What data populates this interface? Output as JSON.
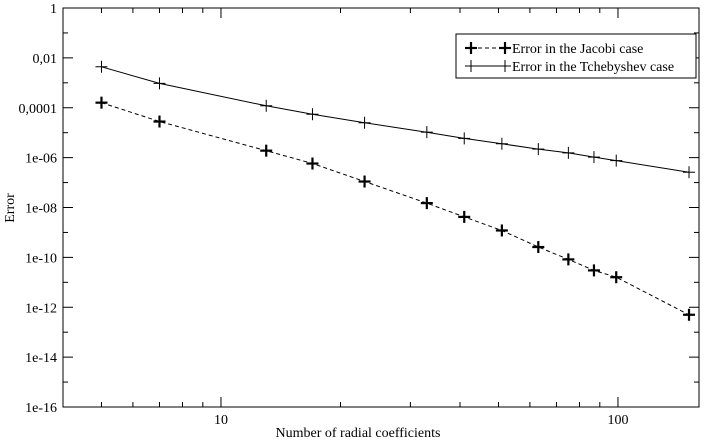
{
  "chart_data": {
    "type": "line",
    "xscale": "log",
    "yscale": "log",
    "xlim": [
      4,
      160
    ],
    "ylim": [
      1e-16,
      1
    ],
    "xlabel": "Number of radial coefficients",
    "ylabel": "Error",
    "x_ticks": [
      {
        "value": 10,
        "label": "10"
      },
      {
        "value": 100,
        "label": "100"
      }
    ],
    "y_ticks": [
      {
        "value": 1,
        "label": "1"
      },
      {
        "value": 0.01,
        "label": "0,01"
      },
      {
        "value": 0.0001,
        "label": "0,0001"
      },
      {
        "value": 1e-06,
        "label": "1e-06"
      },
      {
        "value": 1e-08,
        "label": "1e-08"
      },
      {
        "value": 1e-10,
        "label": "1e-10"
      },
      {
        "value": 1e-12,
        "label": "1e-12"
      },
      {
        "value": 1e-14,
        "label": "1e-14"
      },
      {
        "value": 1e-16,
        "label": "1e-16"
      }
    ],
    "grid": false,
    "legend_position": "top-right",
    "series": [
      {
        "name": "Error in the Jacobi case",
        "line_style": "dashed",
        "color": "#000000",
        "marker": "plus-bold",
        "points": [
          [
            5,
            0.00016
          ],
          [
            7,
            2.8e-05
          ],
          [
            13,
            1.9e-06
          ],
          [
            17,
            5.8e-07
          ],
          [
            23,
            1.1e-07
          ],
          [
            33,
            1.5e-08
          ],
          [
            41,
            4.2e-09
          ],
          [
            51,
            1.2e-09
          ],
          [
            63,
            2.6e-10
          ],
          [
            75,
            8.3e-11
          ],
          [
            87,
            3e-11
          ],
          [
            99,
            1.6e-11
          ],
          [
            151,
            5e-13
          ]
        ]
      },
      {
        "name": "Error in the Tchebyshev case",
        "line_style": "solid",
        "color": "#000000",
        "marker": "plus",
        "points": [
          [
            5,
            0.0044
          ],
          [
            7,
            0.00095
          ],
          [
            13,
            0.00012
          ],
          [
            17,
            5.5e-05
          ],
          [
            23,
            2.5e-05
          ],
          [
            33,
            1.05e-05
          ],
          [
            41,
            5.9e-06
          ],
          [
            51,
            3.6e-06
          ],
          [
            63,
            2.2e-06
          ],
          [
            75,
            1.55e-06
          ],
          [
            87,
            1.05e-06
          ],
          [
            99,
            7.6e-07
          ],
          [
            151,
            2.6e-07
          ]
        ]
      }
    ]
  }
}
